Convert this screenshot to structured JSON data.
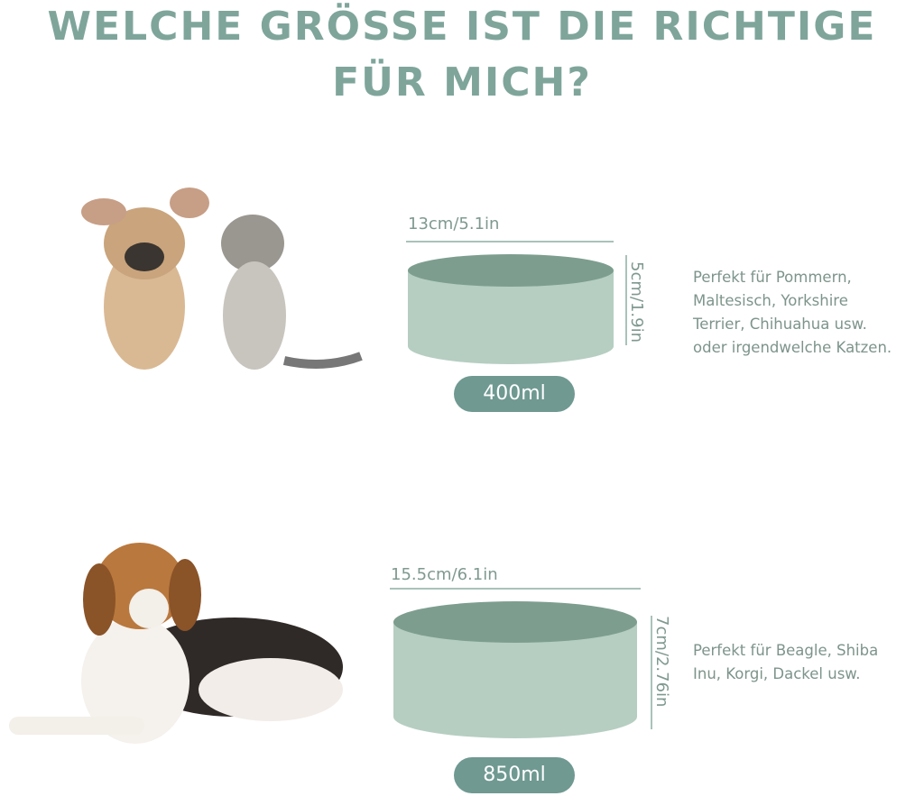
{
  "title": {
    "line1": "WELCHE GRÖSSE IST DIE RICHTIGE",
    "line2": "FÜR MICH?"
  },
  "colors": {
    "title": "#7fa59b",
    "bowl_side": "#b6cec2",
    "bowl_top": "#7d9e8f",
    "pill": "#6f9991",
    "text": "#7d948b"
  },
  "products": [
    {
      "width": "13cm/5.1in",
      "height": "5cm/1.9in",
      "volume": "400ml",
      "description": [
        "Perfekt für Pommern,",
        "Maltesisch, Yorkshire",
        "Terrier, Chihuahua usw.",
        "oder irgendwelche Katzen."
      ]
    },
    {
      "width": "15.5cm/6.1in",
      "height": "7cm/2.76in",
      "volume": "850ml",
      "description": [
        "Perfekt für Beagle, Shiba",
        "Inu, Korgi, Dackel usw."
      ]
    }
  ]
}
